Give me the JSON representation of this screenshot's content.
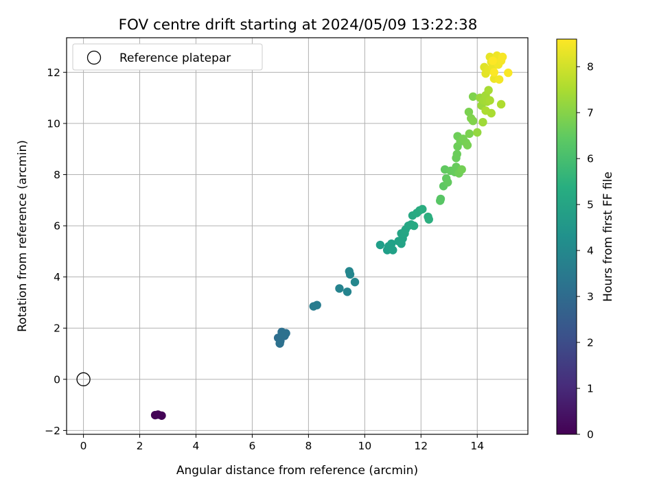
{
  "chart_data": {
    "type": "scatter",
    "title": "FOV centre drift starting at 2024/05/09 13:22:38",
    "xlabel": "Angular distance from reference (arcmin)",
    "ylabel": "Rotation from reference (arcmin)",
    "xlim": [
      -0.6,
      15.8
    ],
    "ylim": [
      -2.15,
      13.35
    ],
    "xticks": [
      0,
      2,
      4,
      6,
      8,
      10,
      12,
      14
    ],
    "yticks": [
      -2,
      0,
      2,
      4,
      6,
      8,
      10,
      12
    ],
    "grid": true,
    "legend": {
      "placement": "top-left",
      "entries": [
        "Reference platepar"
      ]
    },
    "reference_point": {
      "x": 0,
      "y": 0,
      "marker": "open-circle",
      "color": "#000000"
    },
    "colorbar": {
      "label": "Hours from first FF file",
      "range": [
        0,
        8.6
      ],
      "ticks": [
        0,
        1,
        2,
        3,
        4,
        5,
        6,
        7,
        8
      ],
      "colormap": "viridis"
    },
    "points": [
      [
        2.55,
        -1.4,
        0.02
      ],
      [
        2.65,
        -1.38,
        0.04
      ],
      [
        2.78,
        -1.42,
        0.05
      ],
      [
        6.92,
        1.62,
        3.1
      ],
      [
        7.0,
        1.5,
        3.12
      ],
      [
        7.05,
        1.85,
        3.15
      ],
      [
        7.15,
        1.7,
        3.17
      ],
      [
        7.2,
        1.8,
        3.18
      ],
      [
        6.98,
        1.4,
        3.2
      ],
      [
        7.08,
        1.75,
        3.21
      ],
      [
        8.18,
        2.85,
        3.6
      ],
      [
        8.3,
        2.9,
        3.62
      ],
      [
        9.1,
        3.55,
        3.85
      ],
      [
        9.38,
        3.42,
        3.9
      ],
      [
        9.45,
        4.22,
        3.95
      ],
      [
        9.48,
        4.1,
        3.97
      ],
      [
        9.65,
        3.8,
        4.0
      ],
      [
        10.55,
        5.25,
        4.8
      ],
      [
        10.8,
        5.05,
        4.82
      ],
      [
        10.85,
        5.2,
        4.85
      ],
      [
        10.95,
        5.3,
        4.88
      ],
      [
        11.0,
        5.05,
        4.9
      ],
      [
        11.2,
        5.4,
        4.95
      ],
      [
        11.3,
        5.3,
        4.98
      ],
      [
        11.35,
        5.5,
        5.0
      ],
      [
        11.3,
        5.7,
        5.02
      ],
      [
        11.42,
        5.7,
        5.05
      ],
      [
        11.45,
        5.85,
        5.08
      ],
      [
        11.55,
        6.0,
        5.1
      ],
      [
        11.65,
        6.05,
        5.12
      ],
      [
        11.7,
        6.4,
        5.15
      ],
      [
        11.75,
        6.0,
        5.18
      ],
      [
        11.85,
        6.5,
        5.22
      ],
      [
        11.95,
        6.6,
        5.25
      ],
      [
        12.05,
        6.65,
        5.3
      ],
      [
        12.25,
        6.35,
        5.35
      ],
      [
        12.28,
        6.25,
        5.38
      ],
      [
        12.68,
        6.98,
        6.3
      ],
      [
        12.7,
        7.05,
        6.32
      ],
      [
        12.8,
        7.55,
        6.4
      ],
      [
        12.85,
        8.2,
        6.45
      ],
      [
        12.9,
        7.85,
        6.47
      ],
      [
        12.95,
        7.7,
        6.5
      ],
      [
        13.05,
        8.15,
        6.52
      ],
      [
        13.2,
        8.1,
        6.55
      ],
      [
        13.25,
        8.3,
        6.58
      ],
      [
        13.25,
        8.65,
        6.6
      ],
      [
        13.28,
        8.8,
        6.62
      ],
      [
        13.3,
        9.1,
        6.65
      ],
      [
        13.3,
        9.5,
        6.68
      ],
      [
        13.35,
        8.05,
        6.7
      ],
      [
        13.4,
        9.3,
        6.72
      ],
      [
        13.45,
        8.2,
        6.75
      ],
      [
        13.5,
        9.4,
        6.78
      ],
      [
        13.6,
        9.25,
        6.8
      ],
      [
        13.65,
        9.15,
        6.82
      ],
      [
        13.7,
        10.45,
        6.85
      ],
      [
        13.72,
        9.6,
        6.87
      ],
      [
        13.78,
        10.2,
        6.9
      ],
      [
        13.85,
        11.05,
        6.92
      ],
      [
        13.85,
        10.1,
        6.95
      ],
      [
        14.0,
        9.65,
        7.2
      ],
      [
        14.1,
        11.0,
        7.25
      ],
      [
        14.15,
        10.7,
        7.3
      ],
      [
        14.2,
        10.05,
        7.35
      ],
      [
        14.22,
        10.9,
        7.38
      ],
      [
        14.3,
        11.1,
        7.4
      ],
      [
        14.35,
        10.85,
        7.42
      ],
      [
        14.4,
        11.3,
        7.45
      ],
      [
        14.45,
        10.9,
        7.48
      ],
      [
        14.5,
        10.4,
        7.5
      ],
      [
        14.3,
        10.5,
        7.52
      ],
      [
        14.85,
        10.75,
        7.55
      ],
      [
        14.25,
        12.2,
        8.2
      ],
      [
        14.3,
        11.95,
        8.25
      ],
      [
        14.4,
        12.1,
        8.28
      ],
      [
        14.45,
        12.6,
        8.3
      ],
      [
        14.5,
        12.4,
        8.32
      ],
      [
        14.55,
        12.2,
        8.35
      ],
      [
        14.6,
        11.75,
        8.38
      ],
      [
        14.65,
        12.5,
        8.4
      ],
      [
        14.7,
        12.65,
        8.42
      ],
      [
        14.75,
        12.3,
        8.45
      ],
      [
        14.78,
        11.72,
        8.47
      ],
      [
        14.85,
        12.45,
        8.5
      ],
      [
        14.9,
        12.6,
        8.52
      ],
      [
        15.1,
        11.98,
        8.55
      ],
      [
        14.6,
        12.0,
        8.57
      ],
      [
        14.55,
        12.45,
        8.6
      ]
    ]
  }
}
